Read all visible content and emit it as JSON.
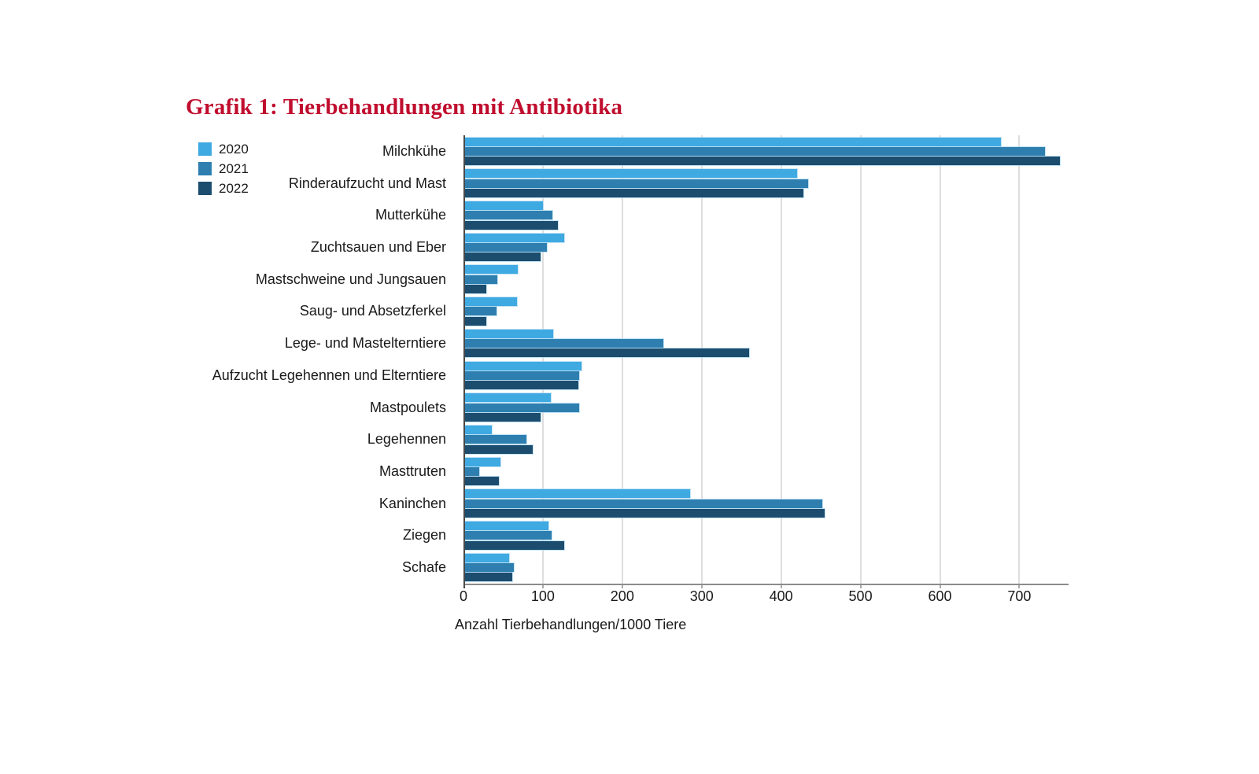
{
  "chart_data": {
    "type": "bar",
    "orientation": "horizontal",
    "title": "Grafik 1: Tierbehandlungen mit Antibiotika",
    "xlabel": "Anzahl Tierbehandlungen/1000 Tiere",
    "categories": [
      "Milchkühe",
      "Rinderaufzucht und Mast",
      "Mutterkühe",
      "Zuchtsauen und Eber",
      "Mastschweine und Jungsauen",
      "Saug- und Absetzferkel",
      "Lege- und Mastelterntiere",
      "Aufzucht Legehennen und Elterntiere",
      "Mastpoulets",
      "Legehennen",
      "Masttruten",
      "Kaninchen",
      "Ziegen",
      "Schafe"
    ],
    "series": [
      {
        "name": "2020",
        "color": "#3FA9E1",
        "values": [
          675,
          418,
          98,
          125,
          66,
          65,
          111,
          147,
          108,
          34,
          45,
          283,
          105,
          55
        ]
      },
      {
        "name": "2021",
        "color": "#2E7FB0",
        "values": [
          730,
          432,
          110,
          103,
          41,
          40,
          250,
          144,
          144,
          77,
          18,
          450,
          109,
          61
        ]
      },
      {
        "name": "2022",
        "color": "#1C4D6E",
        "values": [
          749,
          426,
          117,
          95,
          27,
          27,
          358,
          143,
          95,
          85,
          43,
          453,
          125,
          59
        ]
      }
    ],
    "x_ticks": [
      0,
      100,
      200,
      300,
      400,
      500,
      600,
      700
    ],
    "xlim": [
      0,
      762
    ],
    "grid": true,
    "legend_position": "top-left"
  },
  "style": {
    "title_color": "#C00D2E",
    "text_color": "#1A1A1A",
    "gridline_color": "#DEDEDE",
    "axis_line_color": "#4A4A4A",
    "baseline_color": "#8C8C8C",
    "tick_color": "#ABABAB",
    "background": "#FFFFFF"
  }
}
